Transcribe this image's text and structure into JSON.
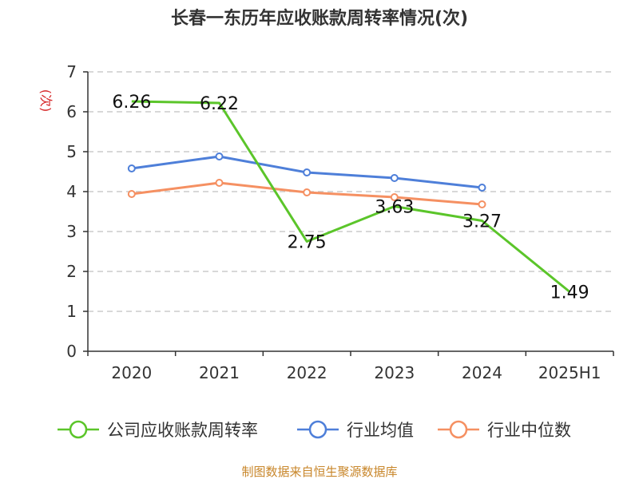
{
  "chart_data": {
    "type": "line",
    "title": "长春一东历年应收账款周转率情况(次)",
    "ylabel": "(次)",
    "xlabel": "",
    "ylim": [
      0,
      7
    ],
    "yticks": [
      0,
      1,
      2,
      3,
      4,
      5,
      6,
      7
    ],
    "grid": "horizontal-dashed",
    "legend_position": "bottom",
    "categories": [
      "2020",
      "2021",
      "2022",
      "2023",
      "2024",
      "2025H1"
    ],
    "series": [
      {
        "name": "公司应收账款周转率",
        "color": "#5bc52a",
        "values": [
          6.26,
          6.22,
          2.75,
          3.63,
          3.27,
          1.49
        ],
        "show_labels": true,
        "show_markers": false
      },
      {
        "name": "行业均值",
        "color": "#4e7fd9",
        "values": [
          4.58,
          4.88,
          4.48,
          4.34,
          4.1,
          null
        ],
        "show_labels": false,
        "show_markers": true
      },
      {
        "name": "行业中位数",
        "color": "#f59062",
        "values": [
          3.94,
          4.22,
          3.98,
          3.86,
          3.68,
          null
        ],
        "show_labels": false,
        "show_markers": true
      }
    ],
    "data_labels": [
      "6.26",
      "6.22",
      "2.75",
      "3.63",
      "3.27",
      "1.49"
    ],
    "source": "制图数据来自恒生聚源数据库"
  }
}
